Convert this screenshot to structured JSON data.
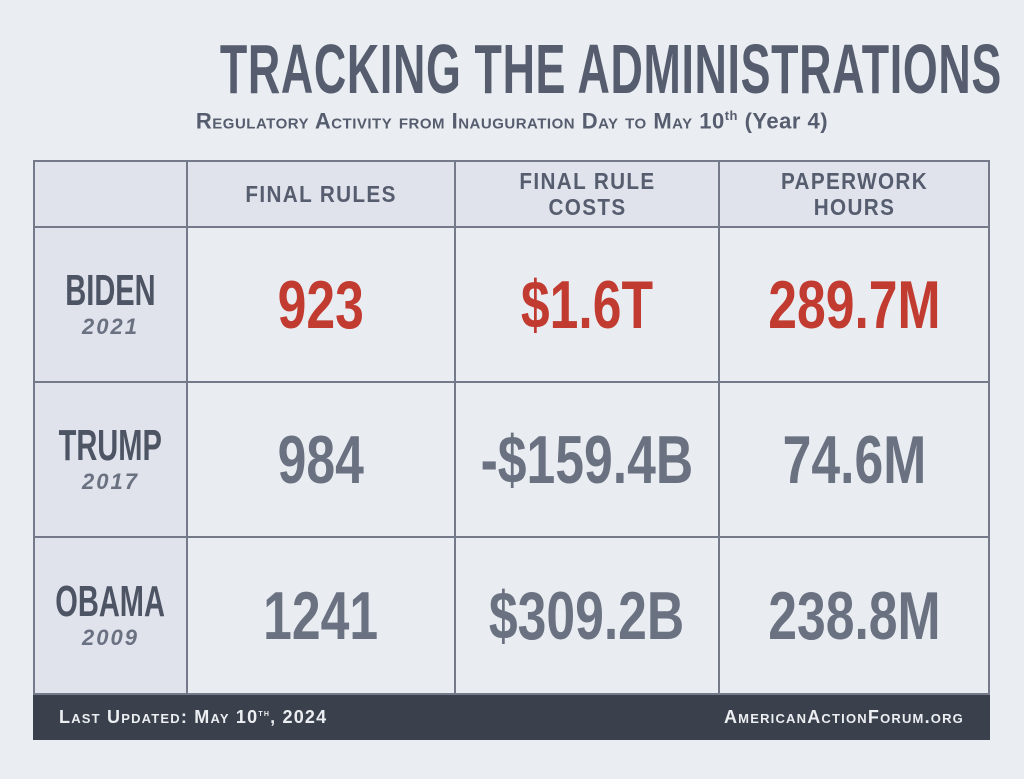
{
  "page": {
    "title": "TRACKING THE ADMINISTRATIONS",
    "subtitle_prefix": "Regulatory Activity from Inauguration Day to May 10",
    "subtitle_sup": "th",
    "subtitle_suffix": " (Year 4)"
  },
  "colors": {
    "accent_red": "#c23b30",
    "value_gray": "#6a7181",
    "ink": "#565d6e",
    "label_cell_bg": "#e0e3ec",
    "data_cell_bg": "#e9ecf1",
    "footer_bg": "#3a414d",
    "page_bg": "#eaeef2",
    "cell_border": "#747a89"
  },
  "chart_data": {
    "type": "table",
    "title": "TRACKING THE ADMINISTRATIONS",
    "subtitle": "Regulatory Activity from Inauguration Day to May 10th (Year 4)",
    "columns": [
      "FINAL RULES",
      "FINAL RULE COSTS",
      "PAPERWORK HOURS"
    ],
    "rows": [
      {
        "administration": "BIDEN",
        "year": "2021",
        "final_rules": "923",
        "final_rule_costs": "$1.6T",
        "paperwork_hours": "289.7M",
        "highlight": true
      },
      {
        "administration": "TRUMP",
        "year": "2017",
        "final_rules": "984",
        "final_rule_costs": "-$159.4B",
        "paperwork_hours": "74.6M",
        "highlight": false
      },
      {
        "administration": "OBAMA",
        "year": "2009",
        "final_rules": "1241",
        "final_rule_costs": "$309.2B",
        "paperwork_hours": "238.8M",
        "highlight": false
      }
    ]
  },
  "footer": {
    "left_prefix": "Last Updated: May 10",
    "left_sup": "th",
    "left_suffix": ", 2024",
    "right": "AmericanActionForum.org"
  }
}
